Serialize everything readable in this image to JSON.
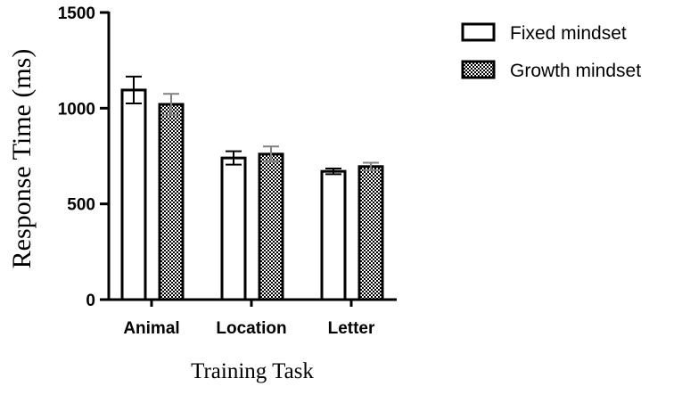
{
  "chart_data": {
    "type": "bar",
    "categories": [
      "Animal",
      "Location",
      "Letter"
    ],
    "series": [
      {
        "name": "Fixed mindset",
        "values": [
          1095,
          740,
          670
        ],
        "errors": [
          70,
          35,
          15
        ],
        "fill": "#ffffff",
        "pattern": "solid",
        "error_color": "#000000"
      },
      {
        "name": "Growth mindset",
        "values": [
          1020,
          760,
          695
        ],
        "errors": [
          55,
          40,
          20
        ],
        "fill": "checkered",
        "pattern": "checkered",
        "error_color": "#808080"
      }
    ],
    "xlabel": "Training Task",
    "ylabel": "Response Time (ms)",
    "ylim": [
      0,
      1500
    ],
    "yticks": [
      0,
      500,
      1000,
      1500
    ],
    "legend_position": "top-right",
    "grid": false
  }
}
